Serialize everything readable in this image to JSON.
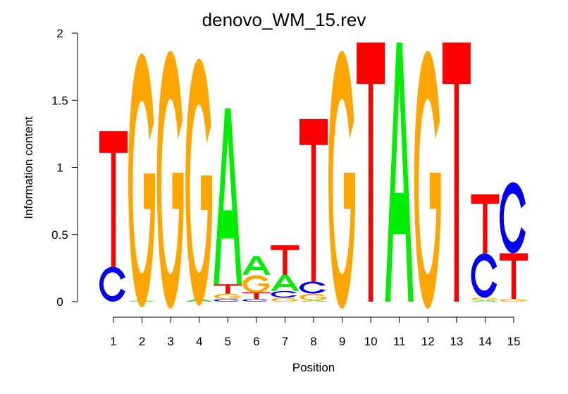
{
  "chart_data": {
    "type": "sequence-logo",
    "title": "denovo_WM_15.rev",
    "xlabel": "Position",
    "ylabel": "Information content",
    "ylim": [
      0,
      2
    ],
    "yticks": [
      "0",
      "0.5",
      "1",
      "1.5",
      "2"
    ],
    "yticks_values": [
      0,
      0.5,
      1,
      1.5,
      2
    ],
    "categories": [
      "1",
      "2",
      "3",
      "4",
      "5",
      "6",
      "7",
      "8",
      "9",
      "10",
      "11",
      "12",
      "13",
      "14",
      "15"
    ],
    "colors": {
      "A": "#00ee00",
      "C": "#0000ee",
      "G": "#ffa500",
      "T": "#ff0000"
    },
    "positions": [
      [
        {
          "letter": "C",
          "bits": 0.26
        },
        {
          "letter": "T",
          "bits": 1.01
        }
      ],
      [
        {
          "letter": "A",
          "bits": 0.01
        },
        {
          "letter": "G",
          "bits": 1.89
        }
      ],
      [
        {
          "letter": "G",
          "bits": 1.92
        }
      ],
      [
        {
          "letter": "A",
          "bits": 0.02
        },
        {
          "letter": "G",
          "bits": 1.84
        }
      ],
      [
        {
          "letter": "C",
          "bits": 0.02
        },
        {
          "letter": "G",
          "bits": 0.04
        },
        {
          "letter": "T",
          "bits": 0.07
        },
        {
          "letter": "A",
          "bits": 1.31
        }
      ],
      [
        {
          "letter": "C",
          "bits": 0.02
        },
        {
          "letter": "T",
          "bits": 0.05
        },
        {
          "letter": "G",
          "bits": 0.13
        },
        {
          "letter": "A",
          "bits": 0.14
        }
      ],
      [
        {
          "letter": "G",
          "bits": 0.03
        },
        {
          "letter": "C",
          "bits": 0.05
        },
        {
          "letter": "A",
          "bits": 0.12
        },
        {
          "letter": "T",
          "bits": 0.22
        }
      ],
      [
        {
          "letter": "A",
          "bits": 0.01
        },
        {
          "letter": "G",
          "bits": 0.05
        },
        {
          "letter": "C",
          "bits": 0.09
        },
        {
          "letter": "T",
          "bits": 1.21
        }
      ],
      [
        {
          "letter": "G",
          "bits": 1.92
        }
      ],
      [
        {
          "letter": "T",
          "bits": 1.93
        }
      ],
      [
        {
          "letter": "A",
          "bits": 1.93
        }
      ],
      [
        {
          "letter": "G",
          "bits": 1.92
        }
      ],
      [
        {
          "letter": "T",
          "bits": 1.93
        }
      ],
      [
        {
          "letter": "A",
          "bits": 0.01
        },
        {
          "letter": "G",
          "bits": 0.02
        },
        {
          "letter": "C",
          "bits": 0.33
        },
        {
          "letter": "T",
          "bits": 0.44
        }
      ],
      [
        {
          "letter": "G",
          "bits": 0.02
        },
        {
          "letter": "T",
          "bits": 0.34
        },
        {
          "letter": "C",
          "bits": 0.53
        }
      ]
    ]
  }
}
